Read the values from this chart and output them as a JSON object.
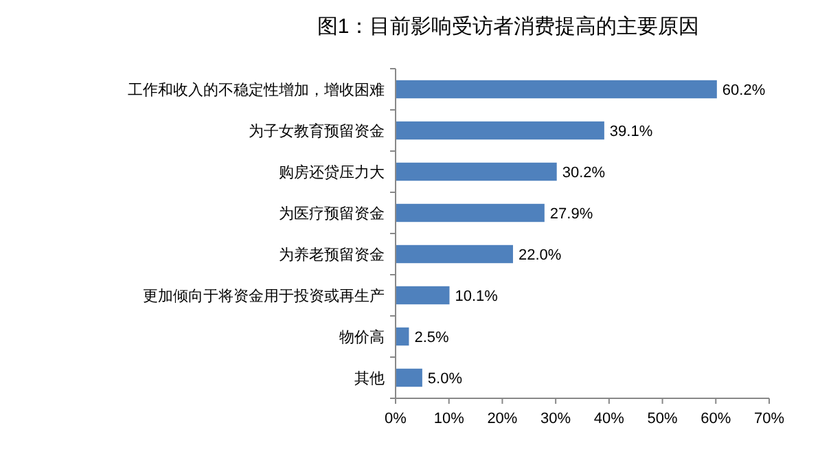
{
  "chart_data": {
    "type": "bar",
    "orientation": "horizontal",
    "title": "图1：目前影响受访者消费提高的主要原因",
    "categories": [
      "工作和收入的不稳定性增加，增收困难",
      "为子女教育预留资金",
      "购房还贷压力大",
      "为医疗预留资金",
      "为养老预留资金",
      "更加倾向于将资金用于投资或再生产",
      "物价高",
      "其他"
    ],
    "values": [
      60.2,
      39.1,
      30.2,
      27.9,
      22.0,
      10.1,
      2.5,
      5.0
    ],
    "value_labels": [
      "60.2%",
      "39.1%",
      "30.2%",
      "27.9%",
      "22.0%",
      "10.1%",
      "2.5%",
      "5.0%"
    ],
    "color": "#4f81bd",
    "xlim": [
      0,
      70
    ],
    "xticks": [
      {
        "value": 0,
        "label": "0%"
      },
      {
        "value": 10,
        "label": "10%"
      },
      {
        "value": 20,
        "label": "20%"
      },
      {
        "value": 30,
        "label": "30%"
      },
      {
        "value": 40,
        "label": "40%"
      },
      {
        "value": 50,
        "label": "50%"
      },
      {
        "value": 60,
        "label": "60%"
      },
      {
        "value": 70,
        "label": "70%"
      }
    ],
    "grid": false
  }
}
